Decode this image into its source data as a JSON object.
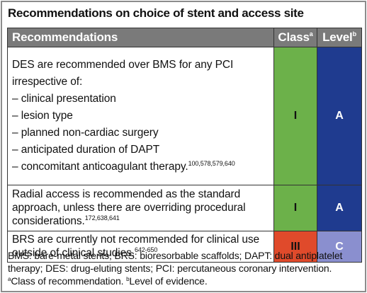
{
  "title": "Recommendations on choice of stent and access site",
  "header": {
    "recommendations": "Recommendations",
    "class": "Class",
    "class_sup": "a",
    "level": "Level",
    "level_sup": "b"
  },
  "rows": [
    {
      "lines": [
        "DES are recommended over BMS for any PCI irrespective of:",
        "– clinical presentation",
        "– lesion type",
        "– planned non-cardiac surgery",
        "– anticipated duration of DAPT",
        "– concomitant anticoagulant therapy."
      ],
      "refs": "100,578,579,640",
      "class": "I",
      "level": "A",
      "class_color": "#6cb14a",
      "level_color": "#1f3b8f"
    },
    {
      "text": "Radial access is recommended as the standard approach, unless there are overriding procedural considerations.",
      "refs": "172,638,641",
      "class": "I",
      "level": "A",
      "class_color": "#6cb14a",
      "level_color": "#1f3b8f"
    },
    {
      "text": "BRS are currently not recommended for clinical use outside of clinical studies.",
      "refs": "642-650",
      "class": "III",
      "level": "C",
      "class_color": "#e04a2b",
      "level_color": "#8a8fcf"
    }
  ],
  "footnote": {
    "abbrev": "BMS: bare-metal stents; BRS: bioresorbable scaffolds; DAPT: dual antiplatelet therapy; DES: drug-eluting stents; PCI: percutaneous coronary intervention.",
    "a_mark": "a",
    "a_text": "Class of recommendation.",
    "b_mark": "b",
    "b_text": "Level of evidence."
  }
}
